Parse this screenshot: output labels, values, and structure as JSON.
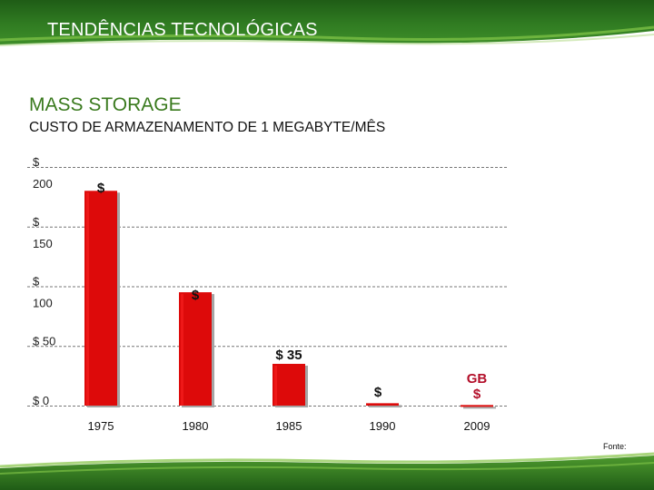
{
  "header": {
    "title": "TENDÊNCIAS TECNOLÓGICAS"
  },
  "section": {
    "title": "MASS STORAGE"
  },
  "colors": {
    "bar": "#dd0a0a",
    "bar_highlight": "#f21b1b",
    "bar_shadow": "#a5a5a5",
    "header_green": "#2f7a21",
    "accent_green": "#3a7a1e",
    "label_dark_red": "#b30f2a"
  },
  "chart_data": {
    "type": "bar",
    "title": "CUSTO DE ARMAZENAMENTO DE 1 MEGABYTE/MÊS",
    "xlabel": "",
    "ylabel": "",
    "ylim": [
      0,
      200
    ],
    "grid": true,
    "categories": [
      "1975",
      "1980",
      "1985",
      "1990",
      "2009"
    ],
    "values": [
      180,
      95,
      35,
      2,
      0.5
    ],
    "y_ticks": [
      {
        "value": 200,
        "lines": [
          "$",
          "200"
        ]
      },
      {
        "value": 150,
        "lines": [
          "$",
          "150"
        ]
      },
      {
        "value": 100,
        "lines": [
          "$",
          "100"
        ]
      },
      {
        "value": 50,
        "lines": [
          "$ 50"
        ]
      },
      {
        "value": 0,
        "lines": [
          "$ 0"
        ]
      }
    ],
    "data_labels": [
      {
        "lines": [
          "$"
        ],
        "color": "#111111"
      },
      {
        "lines": [
          "$"
        ],
        "color": "#111111"
      },
      {
        "lines": [
          "$ 35"
        ],
        "color": "#111111"
      },
      {
        "lines": [
          "$"
        ],
        "color": "#111111"
      },
      {
        "lines": [
          "GB",
          "$"
        ],
        "color": "#b30f2a"
      }
    ]
  },
  "footer": {
    "source_label": "Fonte:"
  }
}
